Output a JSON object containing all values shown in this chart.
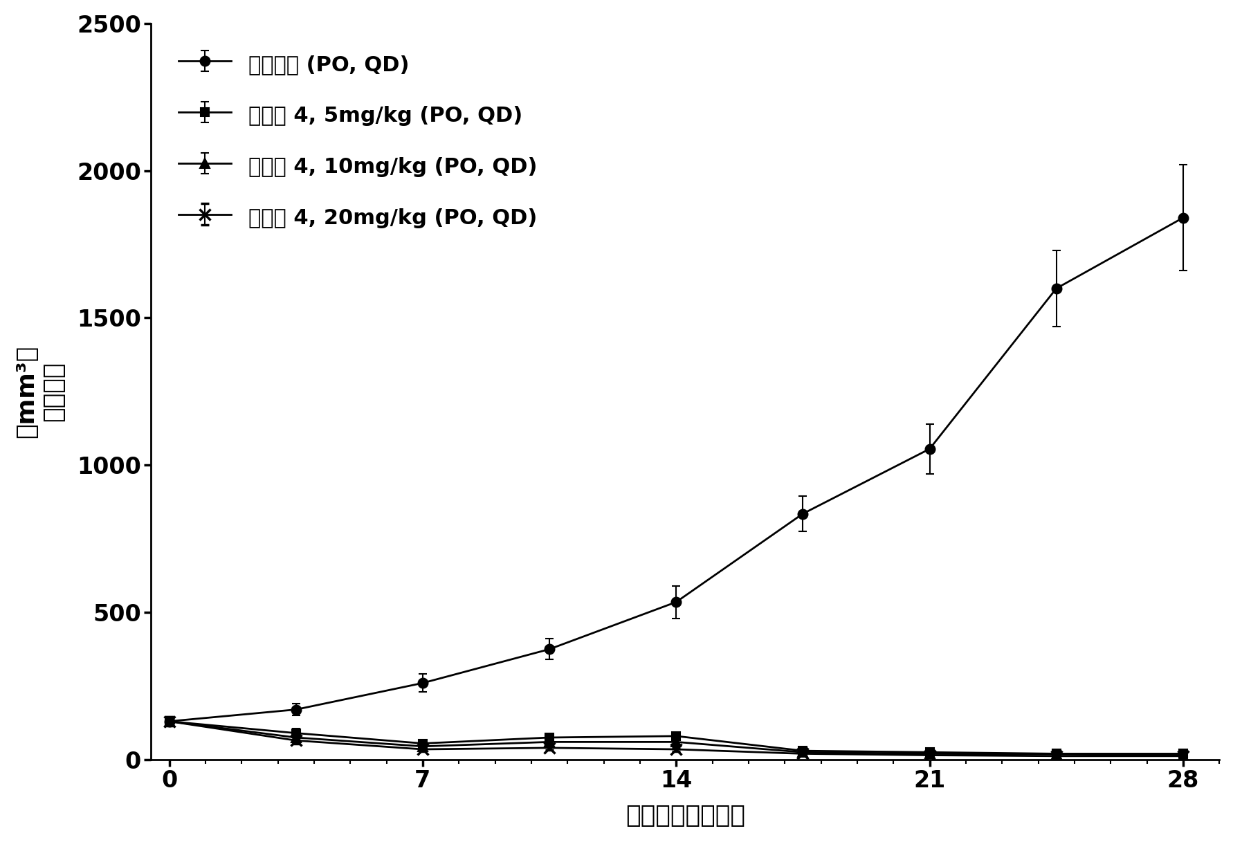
{
  "title": "",
  "xlabel": "治疗开始后的天数",
  "ylabel_line1": "（mm³）",
  "ylabel_line2": "肿瘾体积",
  "x_ticks": [
    0,
    7,
    14,
    21,
    28
  ],
  "xlim": [
    -0.5,
    29
  ],
  "ylim": [
    0,
    2500
  ],
  "yticks": [
    0,
    500,
    1000,
    1500,
    2000,
    2500
  ],
  "series": [
    {
      "label": "溶媒对照 (PO, QD)",
      "x": [
        0,
        3.5,
        7,
        10.5,
        14,
        17.5,
        21,
        24.5,
        28
      ],
      "y": [
        130,
        170,
        260,
        375,
        535,
        835,
        1055,
        1600,
        1840
      ],
      "yerr": [
        15,
        20,
        30,
        35,
        55,
        60,
        85,
        130,
        180
      ],
      "marker": "o",
      "color": "#000000",
      "linewidth": 2.0,
      "markersize": 10
    },
    {
      "label": "化合物 4, 5mg/kg (PO, QD)",
      "x": [
        0,
        3.5,
        7,
        10.5,
        14,
        17.5,
        21,
        24.5,
        28
      ],
      "y": [
        130,
        90,
        55,
        75,
        80,
        30,
        25,
        20,
        20
      ],
      "yerr": [
        15,
        15,
        10,
        12,
        12,
        8,
        8,
        8,
        8
      ],
      "marker": "s",
      "color": "#000000",
      "linewidth": 2.0,
      "markersize": 9
    },
    {
      "label": "化合物 4, 10mg/kg (PO, QD)",
      "x": [
        0,
        3.5,
        7,
        10.5,
        14,
        17.5,
        21,
        24.5,
        28
      ],
      "y": [
        130,
        75,
        45,
        60,
        60,
        25,
        20,
        18,
        15
      ],
      "yerr": [
        15,
        12,
        8,
        10,
        10,
        6,
        6,
        5,
        5
      ],
      "marker": "^",
      "color": "#000000",
      "linewidth": 2.0,
      "markersize": 10
    },
    {
      "label": "化合物 4, 20mg/kg (PO, QD)",
      "x": [
        0,
        3.5,
        7,
        10.5,
        14,
        17.5,
        21,
        24.5,
        28
      ],
      "y": [
        130,
        65,
        35,
        40,
        35,
        20,
        15,
        12,
        12
      ],
      "yerr": [
        15,
        10,
        6,
        8,
        7,
        5,
        4,
        4,
        4
      ],
      "marker": "x",
      "color": "#000000",
      "linewidth": 2.0,
      "markersize": 12
    }
  ],
  "legend_loc": "upper left",
  "background_color": "#ffffff",
  "font_size_label": 26,
  "font_size_tick": 24,
  "font_size_legend": 22
}
